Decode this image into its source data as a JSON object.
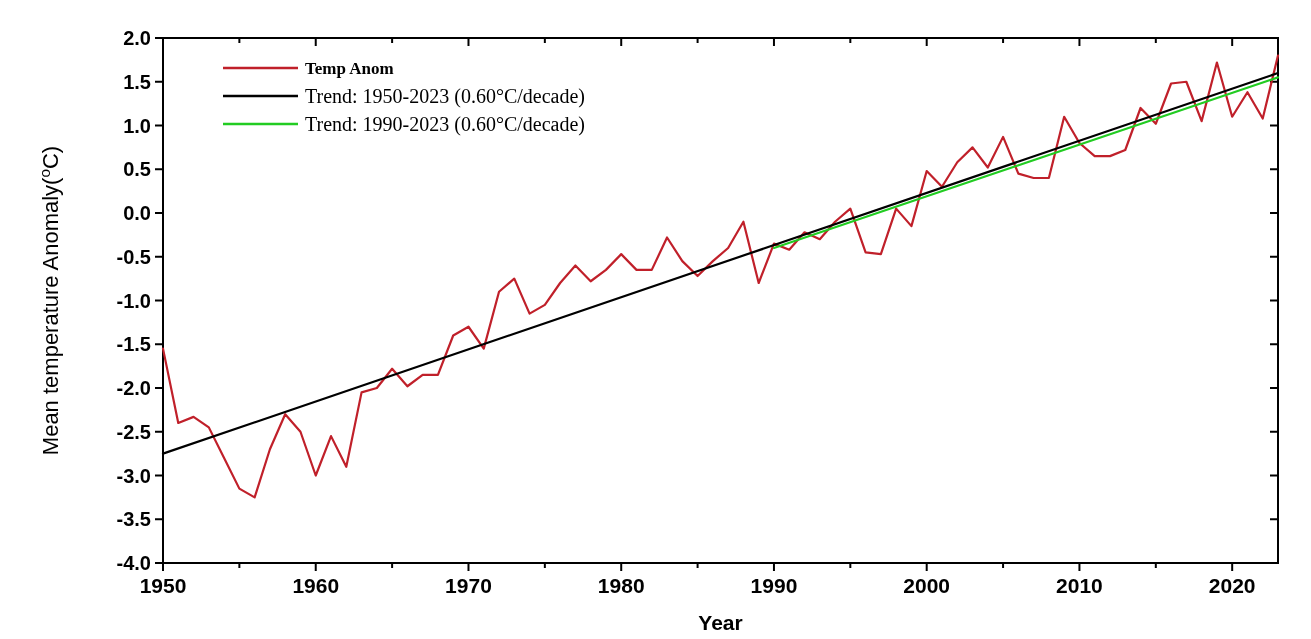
{
  "chart_data": {
    "type": "line",
    "xlabel": "Year",
    "ylabel": "Mean temperature Anomaly($^{o}$C)",
    "xlim": [
      1950,
      2023
    ],
    "ylim": [
      -4,
      2
    ],
    "xticks": [
      1950,
      {
        "value": 1955,
        "label": null
      },
      1960,
      {
        "value": 1965,
        "label": null
      },
      1970,
      {
        "value": 1975,
        "label": null
      },
      1980,
      {
        "value": 1985,
        "label": null
      },
      1990,
      {
        "value": 1995,
        "label": null
      },
      2000,
      {
        "value": 2005,
        "label": null
      },
      2010,
      {
        "value": 2015,
        "label": null
      },
      2020
    ],
    "yticks": [
      {
        "value": -4,
        "label": "-4.0"
      },
      {
        "value": -3.5,
        "label": "-3.5"
      },
      {
        "value": -3,
        "label": "-3.0"
      },
      {
        "value": -2.5,
        "label": "-2.5"
      },
      {
        "value": -2,
        "label": "-2.0"
      },
      {
        "value": -1.5,
        "label": "-1.5"
      },
      {
        "value": -1,
        "label": "-1.0"
      },
      {
        "value": -0.5,
        "label": "-0.5"
      },
      {
        "value": 0,
        "label": "0.0"
      },
      {
        "value": 0.5,
        "label": "0.5"
      },
      {
        "value": 1,
        "label": "1.0"
      },
      {
        "value": 1.5,
        "label": "1.5"
      },
      {
        "value": 2,
        "label": "2.0"
      }
    ],
    "legend": "top left",
    "series": [
      {
        "name": "Temp Anom",
        "color": "#c0202a",
        "x": [
          1950,
          1951,
          1952,
          1953,
          1954,
          1955,
          1956,
          1957,
          1958,
          1959,
          1960,
          1961,
          1962,
          1963,
          1964,
          1965,
          1966,
          1967,
          1968,
          1969,
          1970,
          1971,
          1972,
          1973,
          1974,
          1975,
          1976,
          1977,
          1978,
          1979,
          1980,
          1981,
          1982,
          1983,
          1984,
          1985,
          1986,
          1987,
          1988,
          1989,
          1990,
          1991,
          1992,
          1993,
          1994,
          1995,
          1996,
          1997,
          1998,
          1999,
          2000,
          2001,
          2002,
          2003,
          2004,
          2005,
          2006,
          2007,
          2008,
          2009,
          2010,
          2011,
          2012,
          2013,
          2014,
          2015,
          2016,
          2017,
          2018,
          2019,
          2020,
          2021,
          2022,
          2023
        ],
        "values": [
          -1.55,
          -2.4,
          -2.33,
          -2.45,
          -2.8,
          -3.15,
          -3.25,
          -2.7,
          -2.3,
          -2.5,
          -3.0,
          -2.55,
          -2.9,
          -2.05,
          -2.0,
          -1.78,
          -1.98,
          -1.85,
          -1.85,
          -1.4,
          -1.3,
          -1.55,
          -0.9,
          -0.75,
          -1.15,
          -1.05,
          -0.8,
          -0.6,
          -0.78,
          -0.65,
          -0.47,
          -0.65,
          -0.65,
          -0.28,
          -0.55,
          -0.72,
          -0.55,
          -0.4,
          -0.1,
          -0.8,
          -0.35,
          -0.42,
          -0.22,
          -0.3,
          -0.1,
          0.05,
          -0.45,
          -0.47,
          0.05,
          -0.15,
          0.48,
          0.3,
          0.58,
          0.75,
          0.52,
          0.87,
          0.45,
          0.4,
          0.4,
          1.1,
          0.8,
          0.65,
          0.65,
          0.72,
          1.2,
          1.02,
          1.48,
          1.5,
          1.05,
          1.72,
          1.1,
          1.38,
          1.08,
          1.8
        ]
      },
      {
        "name": "Trend: 1950-2023 (0.60°C/decade)",
        "color": "#000000",
        "x": [
          1950,
          2023
        ],
        "values": [
          -2.75,
          1.6
        ]
      },
      {
        "name": "Trend: 1990-2023 (0.60°C/decade)",
        "color": "#22cc22",
        "x": [
          1990,
          2023
        ],
        "values": [
          -0.4,
          1.55
        ]
      }
    ]
  }
}
